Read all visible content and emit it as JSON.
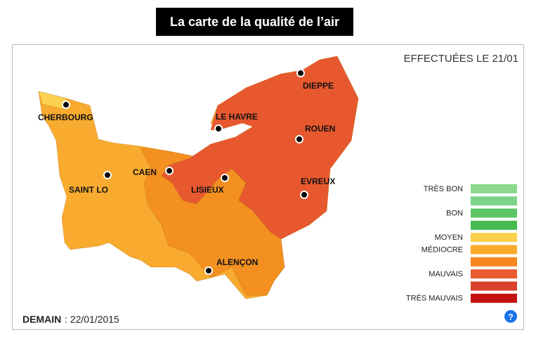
{
  "header": {
    "title": "La carte de la qualité de l’air"
  },
  "map": {
    "updated": "EFFECTUÉES LE 21/01",
    "cities": [
      "CHERBOURG",
      "LE HAVRE",
      "DIEPPE",
      "ROUEN",
      "CAEN",
      "LISIEUX",
      "SAINT LO",
      "EVREUX",
      "ALENÇON"
    ]
  },
  "legend": {
    "groups": [
      {
        "label": "TRÈS BON",
        "colors": [
          "#8bd98f",
          "#7dd38a"
        ]
      },
      {
        "label": "BON",
        "colors": [
          "#5cc667",
          "#47bb50"
        ]
      },
      {
        "label": "MOYEN",
        "colors": [
          "#fcd24d"
        ]
      },
      {
        "label": "MÉDIOCRE",
        "colors": [
          "#f9aa2a",
          "#f7861e"
        ]
      },
      {
        "label": "MAUVAIS",
        "colors": [
          "#ea5b32",
          "#d9412a"
        ]
      },
      {
        "label": "TRÈS MAUVAIS",
        "colors": [
          "#c3120f"
        ]
      }
    ]
  },
  "footer": {
    "label": "DEMAIN",
    "date": ": 22/01/2015",
    "help": "?"
  }
}
